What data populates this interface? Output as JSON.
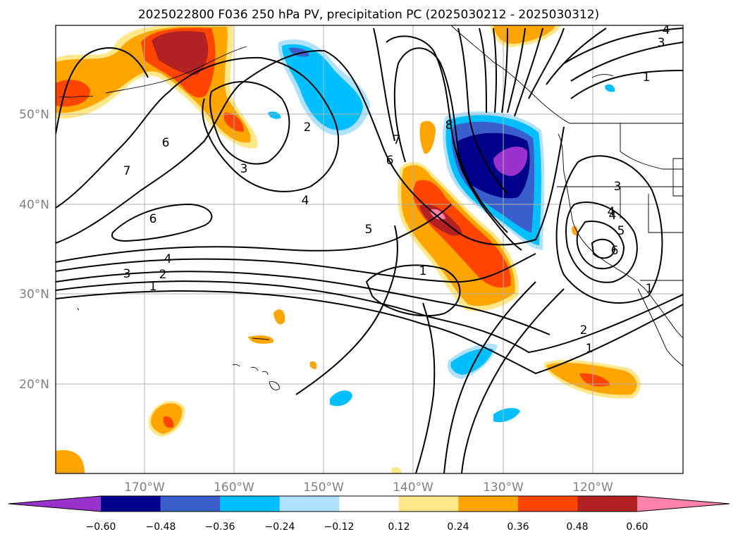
{
  "title": "2025022800 F036 250 hPa PV, precipitation PC (2025030212 - 2025030312)",
  "map": {
    "lat_labels": [
      "50°N",
      "40°N",
      "30°N",
      "20°N"
    ],
    "lon_labels": [
      "170°W",
      "160°W",
      "150°W",
      "140°W",
      "130°W",
      "120°W"
    ],
    "label_color": "#808080",
    "gridlines": true,
    "contour_labels": [
      "1",
      "2",
      "3",
      "4",
      "6",
      "7",
      "6",
      "2",
      "3",
      "4",
      "5",
      "1",
      "7",
      "6",
      "8",
      "4",
      "3",
      "4",
      "5",
      "6",
      "1",
      "2",
      "1",
      "3",
      "4",
      "1"
    ]
  },
  "colorbar": {
    "ticks": [
      "−0.60",
      "−0.48",
      "−0.36",
      "−0.24",
      "−0.12",
      "0.12",
      "0.24",
      "0.36",
      "0.48",
      "0.60"
    ],
    "colors": [
      "#9932cc",
      "#00008b",
      "#3a5fcd",
      "#00bfff",
      "#b0e2ff",
      "#ffffff",
      "#ffe78a",
      "#ffa500",
      "#ff4500",
      "#b22222",
      "#ff82ab"
    ]
  }
}
